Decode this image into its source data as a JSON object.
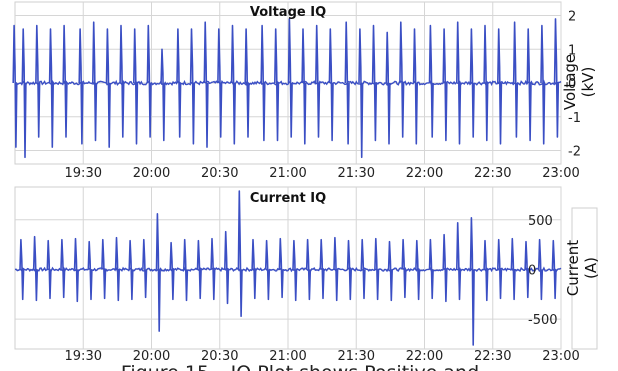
{
  "figure": {
    "caption_visible": "Figure 15 – IQ Plot shows Positive and"
  },
  "chart_data": [
    {
      "type": "line",
      "title": "Voltage IQ",
      "ylabel": "Voltage (kV)",
      "ylabel_lines": [
        "Voltage",
        "(kV)"
      ],
      "xlabel": "",
      "x_ticks": [
        "19:30",
        "20:00",
        "20:30",
        "21:00",
        "21:30",
        "22:00",
        "22:30",
        "23:00"
      ],
      "y_ticks": [
        -2,
        -1,
        0,
        1,
        2
      ],
      "xlim": [
        "19:00",
        "23:00"
      ],
      "ylim": [
        -2.4,
        2.4
      ],
      "grid": true,
      "legend": "none",
      "series": [
        {
          "color": "#3b4fc4",
          "description": "bipolar IQ pulse train (peak/trough per pulse)",
          "x": [
            "19:00",
            "19:04",
            "19:10",
            "19:16",
            "19:22",
            "19:29",
            "19:35",
            "19:41",
            "19:47",
            "19:53",
            "19:59",
            "20:05",
            "20:12",
            "20:18",
            "20:24",
            "20:30",
            "20:36",
            "20:42",
            "20:49",
            "20:55",
            "21:01",
            "21:07",
            "21:13",
            "21:19",
            "21:26",
            "21:32",
            "21:38",
            "21:44",
            "21:50",
            "21:56",
            "22:03",
            "22:09",
            "22:15",
            "22:21",
            "22:27",
            "22:33",
            "22:40",
            "22:46",
            "22:52",
            "22:58"
          ],
          "peaks": [
            1.7,
            1.6,
            1.7,
            1.6,
            1.7,
            1.6,
            1.8,
            1.6,
            1.7,
            1.6,
            1.7,
            1.0,
            1.6,
            1.6,
            1.8,
            1.6,
            1.7,
            1.6,
            1.7,
            1.6,
            1.9,
            1.6,
            1.7,
            1.6,
            1.8,
            1.6,
            1.7,
            1.5,
            1.8,
            1.6,
            1.7,
            1.6,
            1.8,
            1.6,
            1.7,
            1.6,
            1.8,
            1.6,
            1.7,
            1.9
          ],
          "troughs": [
            -1.9,
            -2.2,
            -1.6,
            -1.9,
            -1.6,
            -1.8,
            -1.7,
            -1.9,
            -1.6,
            -1.8,
            -1.6,
            -1.7,
            -1.6,
            -1.8,
            -1.9,
            -1.6,
            -1.8,
            -1.6,
            -1.7,
            -1.7,
            -1.6,
            -1.8,
            -1.6,
            -1.7,
            -1.8,
            -2.2,
            -1.7,
            -1.8,
            -1.6,
            -1.8,
            -1.6,
            -1.7,
            -1.8,
            -1.6,
            -1.7,
            -1.8,
            -1.6,
            -1.7,
            -1.8,
            -1.6
          ]
        }
      ]
    },
    {
      "type": "line",
      "title": "Current IQ",
      "ylabel": "Current (A)",
      "ylabel_lines": [
        "Current",
        "(A)"
      ],
      "xlabel": "",
      "x_ticks": [
        "19:30",
        "20:00",
        "20:30",
        "21:00",
        "21:30",
        "22:00",
        "22:30",
        "23:00"
      ],
      "y_ticks": [
        -500,
        0,
        500
      ],
      "xlim": [
        "19:00",
        "23:00"
      ],
      "ylim": [
        -800,
        830
      ],
      "grid": true,
      "legend": "none",
      "series": [
        {
          "color": "#3b4fc4",
          "description": "bipolar IQ pulse train (peak/trough per pulse)",
          "x": [
            "19:03",
            "19:09",
            "19:15",
            "19:21",
            "19:27",
            "19:33",
            "19:39",
            "19:45",
            "19:51",
            "19:57",
            "20:03",
            "20:09",
            "20:15",
            "20:21",
            "20:27",
            "20:33",
            "20:39",
            "20:45",
            "20:51",
            "20:57",
            "21:03",
            "21:09",
            "21:15",
            "21:21",
            "21:27",
            "21:33",
            "21:39",
            "21:45",
            "21:51",
            "21:57",
            "22:03",
            "22:09",
            "22:15",
            "22:21",
            "22:27",
            "22:33",
            "22:39",
            "22:45",
            "22:51",
            "22:57"
          ],
          "peaks": [
            300,
            330,
            290,
            300,
            310,
            280,
            300,
            320,
            290,
            300,
            560,
            270,
            300,
            290,
            310,
            380,
            790,
            300,
            290,
            310,
            290,
            300,
            300,
            320,
            290,
            300,
            310,
            280,
            300,
            290,
            300,
            350,
            470,
            520,
            290,
            300,
            310,
            280,
            300,
            290
          ],
          "troughs": [
            -300,
            -310,
            -290,
            -280,
            -320,
            -300,
            -290,
            -310,
            -300,
            -280,
            -620,
            -300,
            -310,
            -290,
            -300,
            -340,
            -470,
            -290,
            -300,
            -280,
            -310,
            -300,
            -290,
            -310,
            -300,
            -290,
            -300,
            -310,
            -280,
            -300,
            -290,
            -320,
            -300,
            -760,
            -310,
            -290,
            -300,
            -280,
            -300,
            -290
          ]
        }
      ]
    }
  ]
}
